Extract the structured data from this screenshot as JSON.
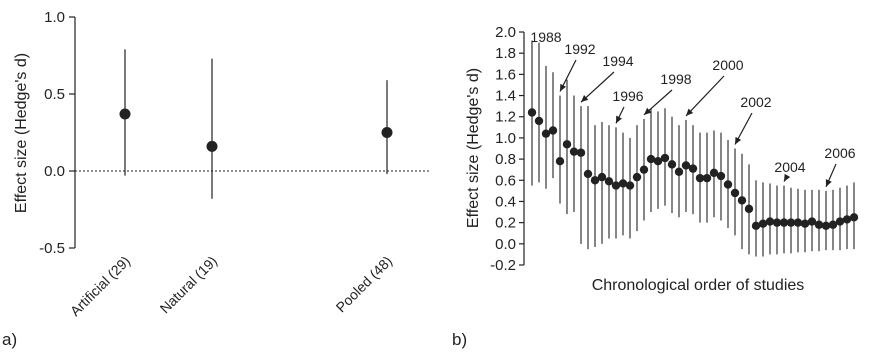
{
  "chart_data": [
    {
      "type": "scatter",
      "panel_label": "a)",
      "ylabel": "Effect size (Hedge's d)",
      "ylim": [
        -0.5,
        1.0
      ],
      "yticks": [
        "1.0",
        "0.5",
        "0.0",
        "-0.5"
      ],
      "ytick_values": [
        1.0,
        0.5,
        0.0,
        -0.5
      ],
      "categories": [
        "Artificial (29)",
        "Natural (19)",
        "Pooled (48)"
      ],
      "values": [
        0.37,
        0.16,
        0.25
      ],
      "ci_low": [
        -0.03,
        -0.18,
        -0.02
      ],
      "ci_high": [
        0.79,
        0.73,
        0.59
      ],
      "reference_line": 0.0
    },
    {
      "type": "scatter",
      "panel_label": "b)",
      "ylabel": "Effect size (Hedge's d)",
      "xlabel": "Chronological order of studies",
      "ylim": [
        -0.2,
        2.0
      ],
      "yticks": [
        "2.0",
        "1.8",
        "1.6",
        "1.4",
        "1.2",
        "1.0",
        "0.8",
        "0.6",
        "0.4",
        "0.2",
        "0.0",
        "-0.2"
      ],
      "ytick_values": [
        2.0,
        1.8,
        1.6,
        1.4,
        1.2,
        1.0,
        0.8,
        0.6,
        0.4,
        0.2,
        0.0,
        -0.2
      ],
      "values": [
        1.24,
        1.16,
        1.04,
        1.07,
        0.78,
        0.94,
        0.87,
        0.86,
        0.66,
        0.6,
        0.63,
        0.59,
        0.55,
        0.57,
        0.55,
        0.63,
        0.7,
        0.8,
        0.78,
        0.81,
        0.75,
        0.68,
        0.74,
        0.71,
        0.62,
        0.62,
        0.67,
        0.64,
        0.56,
        0.48,
        0.41,
        0.33,
        0.17,
        0.19,
        0.21,
        0.2,
        0.2,
        0.2,
        0.2,
        0.19,
        0.21,
        0.18,
        0.17,
        0.18,
        0.21,
        0.23,
        0.25
      ],
      "ci_low": [
        0.55,
        0.58,
        0.52,
        0.62,
        0.38,
        0.28,
        0.3,
        0.0,
        -0.05,
        -0.03,
        0.0,
        0.05,
        0.05,
        0.08,
        0.05,
        0.12,
        0.22,
        0.3,
        0.33,
        0.36,
        0.29,
        0.25,
        0.3,
        0.28,
        0.2,
        0.2,
        0.25,
        0.22,
        0.15,
        0.08,
        -0.05,
        -0.1,
        -0.12,
        -0.12,
        -0.1,
        -0.1,
        -0.09,
        -0.09,
        -0.08,
        -0.08,
        -0.07,
        -0.07,
        -0.06,
        -0.06,
        -0.06,
        -0.05,
        -0.05
      ],
      "ci_high": [
        1.92,
        1.9,
        1.68,
        1.62,
        1.4,
        1.55,
        1.4,
        1.3,
        1.3,
        1.12,
        1.15,
        1.12,
        1.1,
        1.05,
        1.0,
        1.12,
        1.18,
        1.28,
        1.25,
        1.28,
        1.2,
        1.12,
        1.17,
        1.12,
        1.05,
        1.05,
        1.07,
        1.05,
        0.98,
        0.9,
        0.85,
        0.75,
        0.6,
        0.58,
        0.57,
        0.55,
        0.55,
        0.53,
        0.52,
        0.51,
        0.51,
        0.51,
        0.5,
        0.51,
        0.53,
        0.55,
        0.58
      ],
      "annotations": [
        {
          "label": "1988",
          "study": 1
        },
        {
          "label": "1992",
          "study": 4
        },
        {
          "label": "1994",
          "study": 7
        },
        {
          "label": "1996",
          "study": 12
        },
        {
          "label": "1998",
          "study": 16
        },
        {
          "label": "2000",
          "study": 22
        },
        {
          "label": "2002",
          "study": 29
        },
        {
          "label": "2004",
          "study": 36
        },
        {
          "label": "2006",
          "study": 42
        }
      ]
    }
  ]
}
